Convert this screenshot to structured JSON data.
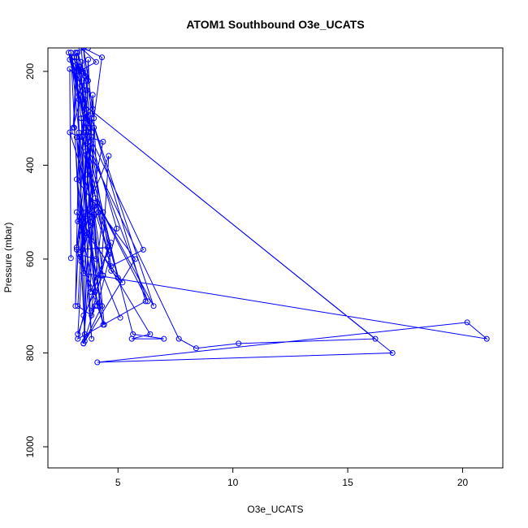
{
  "chart_data": {
    "type": "line",
    "title": "ATOM1 Southbound O3e_UCATS",
    "xlabel": "O3e_UCATS",
    "ylabel": "Pressure (mbar)",
    "xlim": [
      1.95,
      21.75
    ],
    "ylim": [
      1045,
      150
    ],
    "y_inverted": true,
    "xticks": [
      5,
      10,
      15,
      20
    ],
    "yticks": [
      200,
      400,
      600,
      800,
      1000
    ],
    "grid": false,
    "series_color": "#0000ff",
    "markers": "open-circle",
    "series": [
      {
        "x": [
          2.95,
          2.9,
          3.6,
          3.15,
          3.3,
          2.95,
          3.55,
          3.2,
          3.1,
          3.45,
          3.7,
          3.85,
          3.4,
          3.8,
          4.1,
          3.7,
          3.9,
          4.15,
          3.6,
          3.35,
          4.35,
          3.75,
          3.2,
          3.6,
          4.6,
          4.25,
          3.65,
          4.05,
          3.3,
          4.2,
          3.75,
          3.25,
          4.7,
          3.8,
          3.95,
          3.5,
          4.0,
          4.6,
          2.9,
          3.35,
          4.1,
          4.95,
          3.6,
          3.95,
          4.4,
          3.2,
          4.55,
          3.85,
          3.25,
          3.7,
          6.1,
          4.7,
          3.6,
          3.55,
          4.3,
          3.2,
          5.75,
          3.5,
          4.0,
          3.85,
          4.35,
          3.25,
          5.2,
          4.7,
          3.6,
          4.0,
          3.3,
          5.0,
          3.55,
          6.3,
          4.0,
          6.55,
          3.85,
          6.2,
          3.25,
          3.5,
          4.35,
          5.1,
          4.35,
          3.4,
          3.85,
          3.2,
          4.35,
          3.2,
          6.4,
          5.6,
          7.0,
          5.65,
          3.45,
          7.65,
          8.4,
          10.25,
          16.2,
          3.5,
          16.95,
          4.1,
          20.2,
          21.05,
          3.5,
          3.2,
          3.7,
          3.1,
          3.3,
          3.4,
          3.5,
          2.95,
          3.3,
          3.6,
          3.05,
          3.2,
          3.5,
          2.85,
          3.4,
          3.6,
          3.3,
          3.0,
          3.7,
          3.25,
          3.55,
          3.45,
          2.9,
          3.6,
          3.9,
          3.5,
          3.65,
          3.8,
          3.3,
          4.05,
          3.4,
          3.7,
          3.55,
          3.15,
          3.85,
          3.6,
          3.95,
          4.3,
          3.5,
          3.7
        ],
        "y": [
          598,
          195,
          240,
          700,
          330,
          160,
          760,
          170,
          320,
          580,
          175,
          330,
          605,
          520,
          480,
          505,
          250,
          500,
          550,
          595,
          350,
          340,
          575,
          500,
          380,
          635,
          420,
          600,
          590,
          700,
          360,
          760,
          565,
          670,
          320,
          780,
          480,
          590,
          330,
          340,
          700,
          535,
          310,
          505,
          740,
          580,
          575,
          720,
          700,
          330,
          580,
          615,
          290,
          775,
          700,
          430,
          600,
          780,
          700,
          710,
          500,
          520,
          650,
          625,
          370,
          670,
          340,
          640,
          330,
          690,
          470,
          700,
          300,
          690,
          770,
          720,
          635,
          725,
          635,
          300,
          770,
          340,
          740,
          500,
          760,
          770,
          770,
          760,
          340,
          770,
          790,
          780,
          770,
          270,
          800,
          820,
          735,
          770,
          630,
          160,
          220,
          170,
          260,
          180,
          330,
          160,
          250,
          210,
          320,
          170,
          300,
          160,
          230,
          280,
          190,
          170,
          350,
          160,
          210,
          200,
          175,
          300,
          280,
          150,
          240,
          320,
          200,
          180,
          150,
          320,
          260,
          160,
          340,
          220,
          300,
          170,
          150,
          150
        ]
      }
    ]
  }
}
